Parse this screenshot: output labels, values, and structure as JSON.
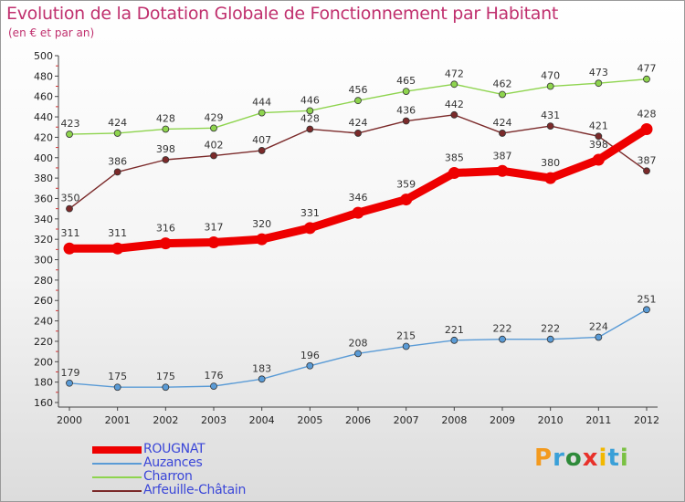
{
  "chart_data": {
    "type": "line",
    "title": "Evolution de la Dotation Globale de Fonctionnement par Habitant",
    "subtitle": "(en € et par an)",
    "x": [
      "2000",
      "2001",
      "2002",
      "2003",
      "2004",
      "2005",
      "2006",
      "2007",
      "2008",
      "2009",
      "2010",
      "2011",
      "2012"
    ],
    "ylim": [
      160,
      500
    ],
    "yticks": [
      160,
      180,
      200,
      220,
      240,
      260,
      280,
      300,
      320,
      340,
      360,
      380,
      400,
      420,
      440,
      460,
      480,
      500
    ],
    "grid": false,
    "legend_position": "bottom-left",
    "series": [
      {
        "name": "Charron",
        "color": "#8ed44e",
        "values": [
          423,
          424,
          428,
          429,
          444,
          446,
          456,
          465,
          472,
          462,
          470,
          473,
          477
        ]
      },
      {
        "name": "Arfeuille-Châtain",
        "color": "#7b2a2a",
        "values": [
          350,
          386,
          398,
          402,
          407,
          428,
          424,
          436,
          442,
          424,
          431,
          421,
          387
        ]
      },
      {
        "name": "Auzances",
        "color": "#5a9bd6",
        "values": [
          179,
          175,
          175,
          176,
          183,
          196,
          208,
          215,
          221,
          222,
          222,
          224,
          251
        ]
      },
      {
        "name": "ROUGNAT",
        "color": "#ee0000",
        "values": [
          311,
          311,
          316,
          317,
          320,
          331,
          346,
          359,
          385,
          387,
          380,
          398,
          428
        ]
      }
    ]
  },
  "legend": {
    "items": [
      {
        "label": "ROUGNAT",
        "color": "#ee0000"
      },
      {
        "label": "Auzances",
        "color": "#5a9bd6"
      },
      {
        "label": "Charron",
        "color": "#8ed44e"
      },
      {
        "label": "Arfeuille-Châtain",
        "color": "#7b2a2a"
      }
    ]
  },
  "logo": {
    "text": "Proxiti"
  }
}
